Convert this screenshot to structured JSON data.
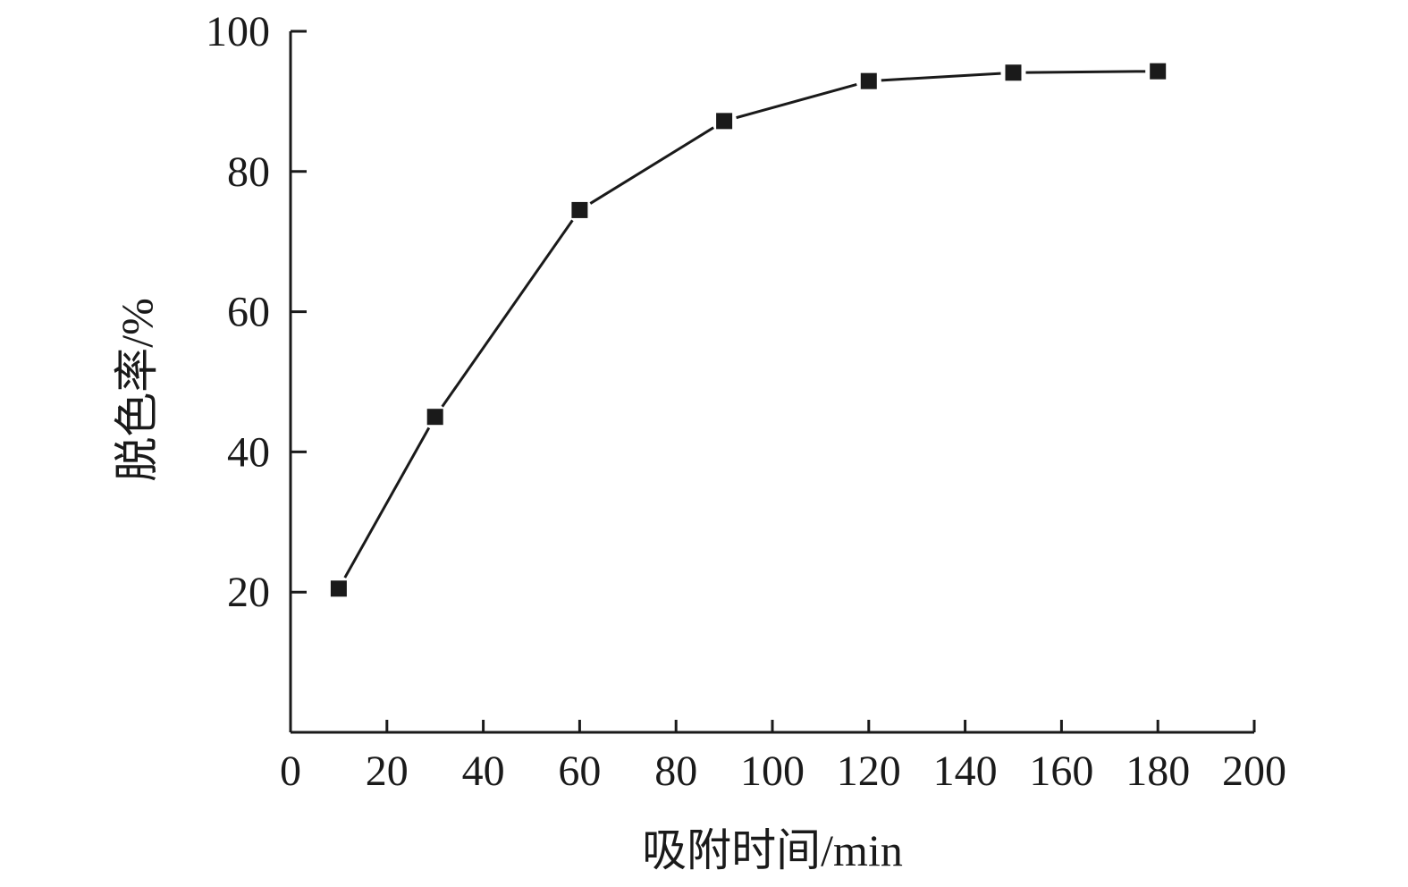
{
  "chart_data": {
    "type": "line",
    "xlabel": "吸附时间/min",
    "ylabel": "脱色率/%",
    "xlim": [
      0,
      200
    ],
    "ylim": [
      0,
      100
    ],
    "xticks": [
      0,
      20,
      40,
      60,
      80,
      100,
      120,
      140,
      160,
      180,
      200
    ],
    "yticks": [
      20,
      40,
      60,
      80,
      100
    ],
    "grid": false,
    "marker": "square",
    "series": [
      {
        "x": [
          10,
          30,
          60,
          90,
          120,
          150,
          180
        ],
        "y": [
          20.5,
          45.0,
          74.5,
          87.2,
          92.9,
          94.1,
          94.3
        ]
      }
    ],
    "colors": {
      "line": "#1a1a1a",
      "marker": "#1a1a1a",
      "axis": "#1a1a1a"
    }
  }
}
